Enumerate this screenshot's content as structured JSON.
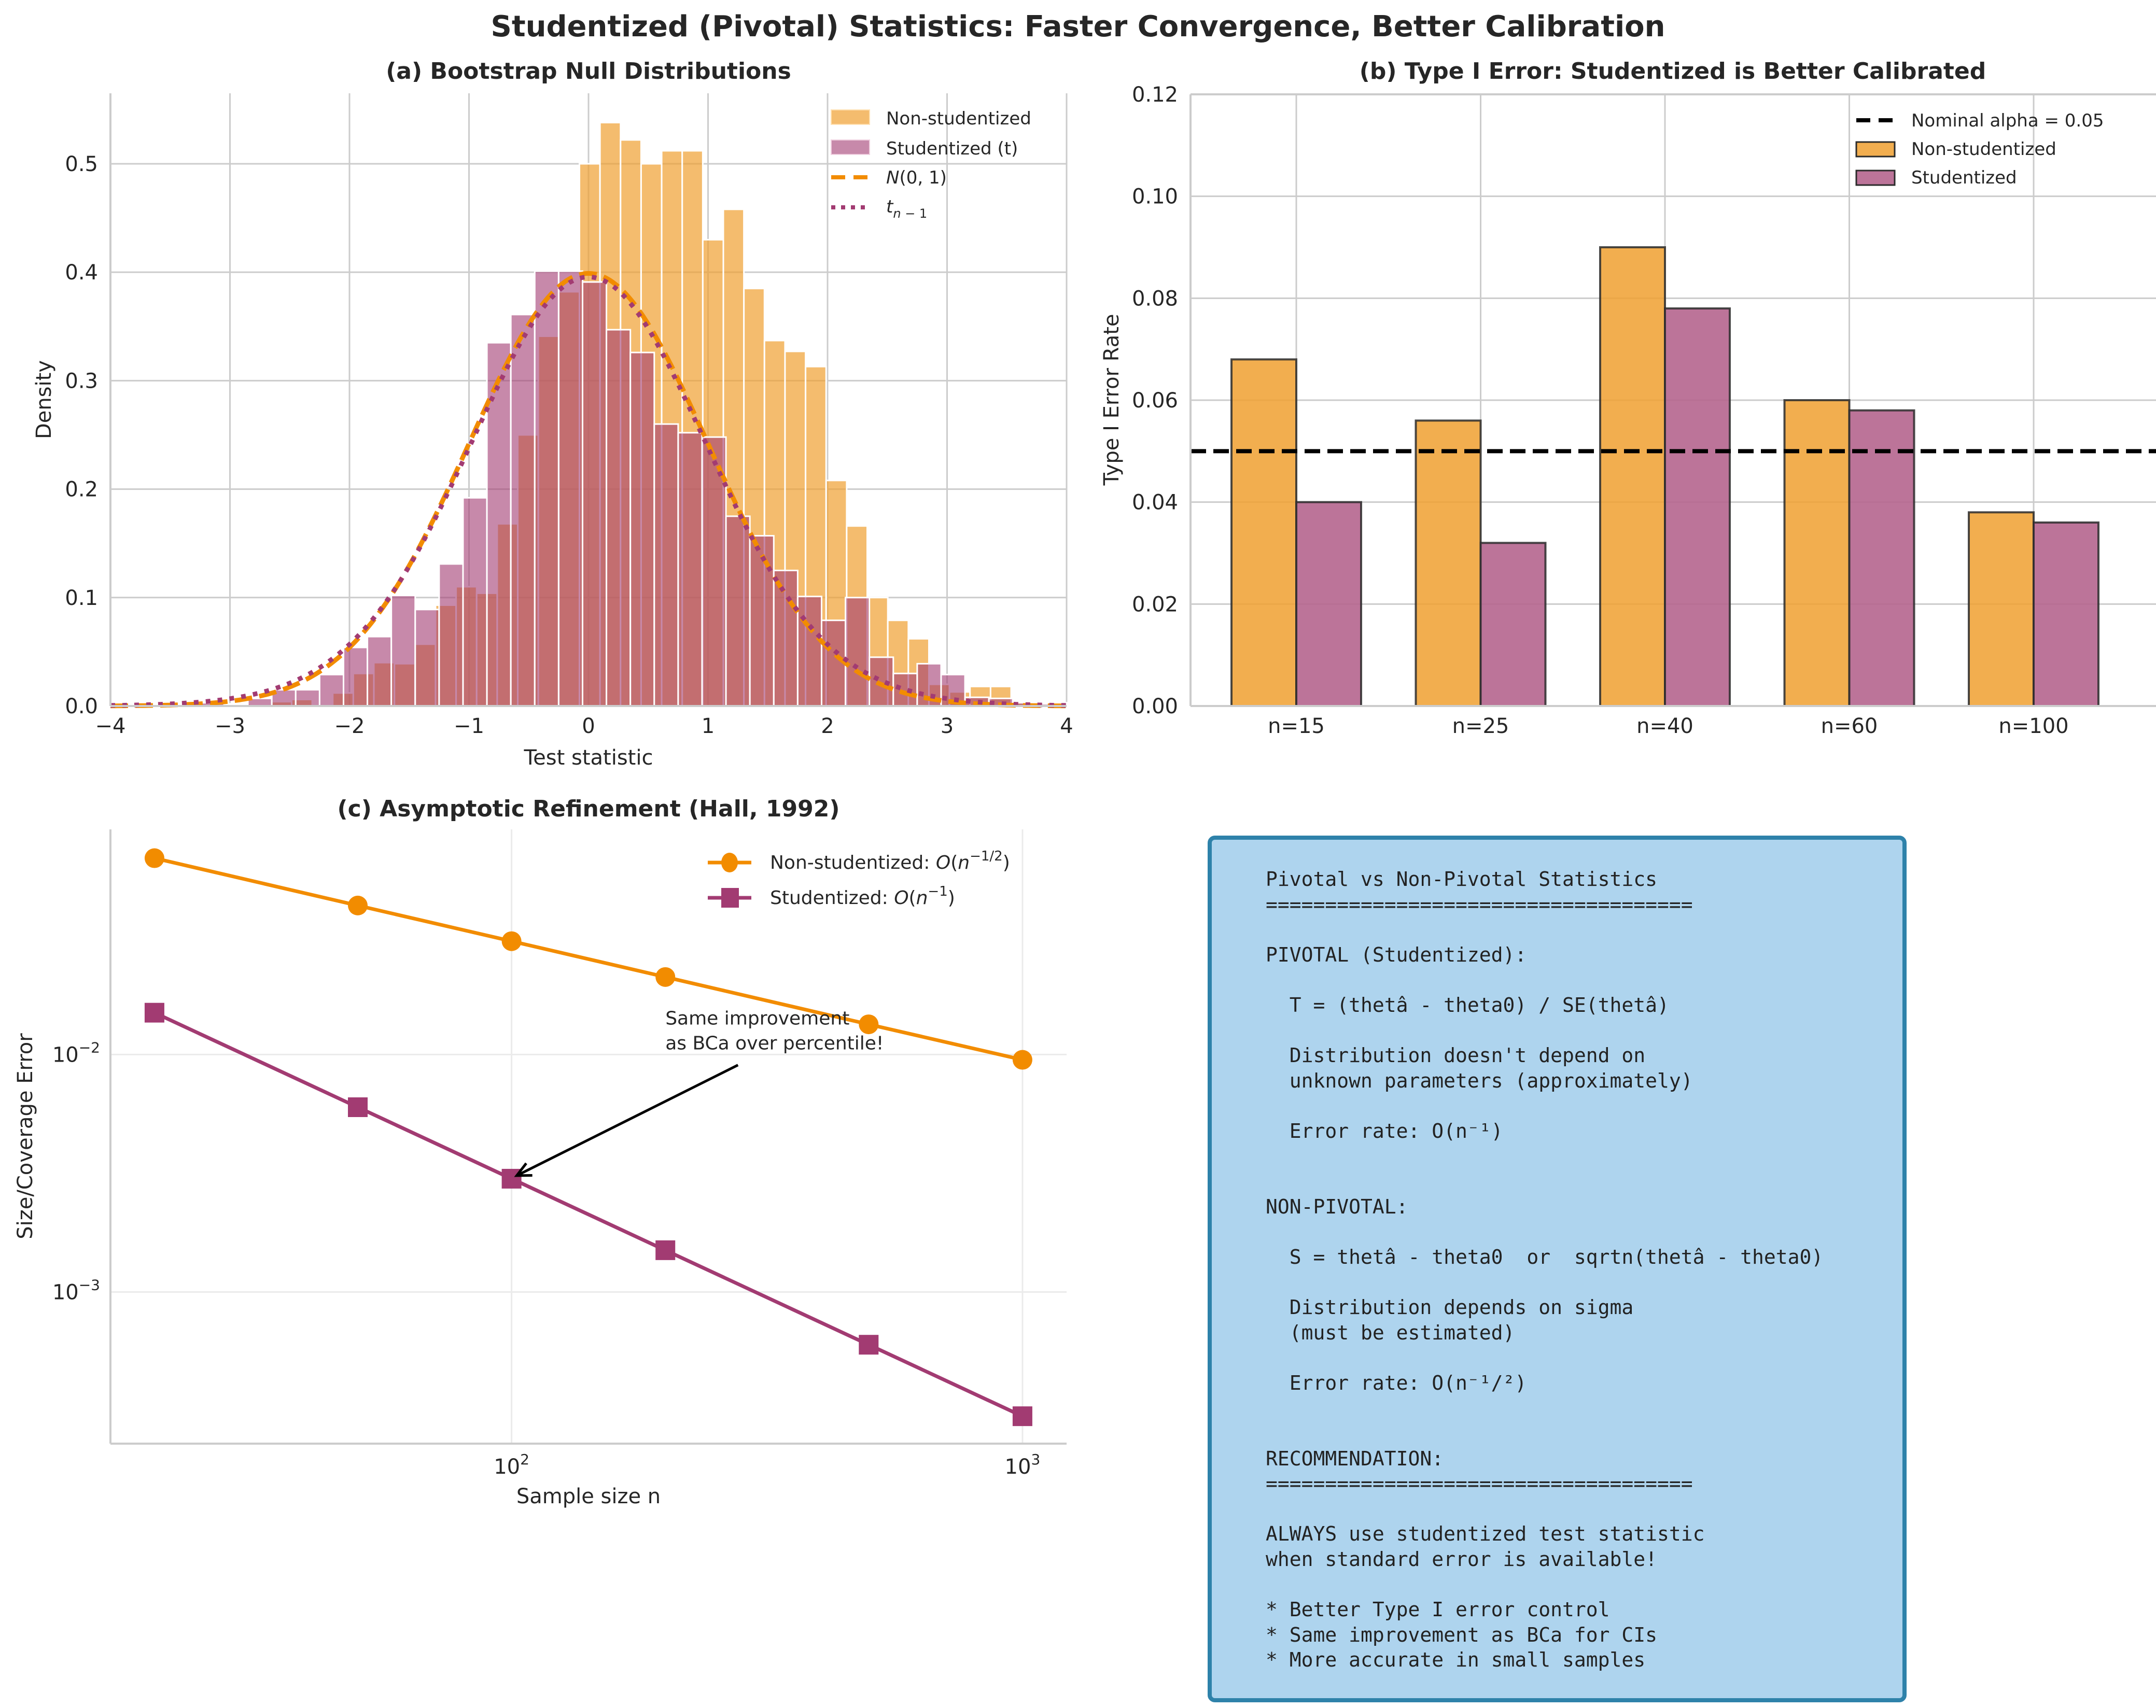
{
  "figure": {
    "suptitle": "Studentized (Pivotal) Statistics: Faster Convergence, Better Calibration"
  },
  "colors": {
    "orange": "#f28c00",
    "orange_fill": "#f0a030",
    "purple": "#a23b72",
    "purple_fill": "#b5658e",
    "grid": "#cccccc",
    "box_fill": "#aed4ee",
    "box_edge": "#2e82aa"
  },
  "chart_data": [
    {
      "id": "a",
      "type": "bar",
      "subtype": "histogram-overlay",
      "title": "(a) Bootstrap Null Distributions",
      "xlabel": "Test statistic",
      "ylabel": "Density",
      "xlim": [
        -4,
        4
      ],
      "ylim": [
        0,
        0.565
      ],
      "xticks": [
        -4,
        -3,
        -2,
        -1,
        0,
        1,
        2,
        3,
        4
      ],
      "xtick_labels": [
        "−4",
        "−3",
        "−2",
        "−1",
        "0",
        "1",
        "2",
        "3",
        "4"
      ],
      "yticks": [
        0.0,
        0.1,
        0.2,
        0.3,
        0.4,
        0.5
      ],
      "ytick_labels": [
        "0.0",
        "0.1",
        "0.2",
        "0.3",
        "0.4",
        "0.5"
      ],
      "grid": true,
      "legend_position": "top-right",
      "legend": [
        {
          "label": "Non-studentized",
          "kind": "patch",
          "color": "#f0a030"
        },
        {
          "label": "Studentized (t)",
          "kind": "patch",
          "color": "#b5658e"
        },
        {
          "label": "N(0, 1)",
          "kind": "dashed-line",
          "color": "#f28c00"
        },
        {
          "label": "t_{n−1}",
          "kind": "dotted-line",
          "color": "#a23b72"
        }
      ],
      "series": [
        {
          "name": "Non-studentized",
          "bin_start": -3.0,
          "bin_width": 0.172,
          "values": [
            0.002,
            0.0,
            0.004,
            0.006,
            0.0,
            0.012,
            0.03,
            0.04,
            0.039,
            0.057,
            0.093,
            0.11,
            0.104,
            0.168,
            0.25,
            0.341,
            0.382,
            0.5,
            0.538,
            0.522,
            0.5,
            0.512,
            0.512,
            0.43,
            0.458,
            0.385,
            0.337,
            0.327,
            0.313,
            0.208,
            0.166,
            0.1,
            0.079,
            0.062,
            0.02,
            0.013,
            0.018,
            0.018,
            0.004,
            0.0,
            0.002,
            0.0,
            0.002
          ]
        },
        {
          "name": "Studentized (t)",
          "bin_start": -3.25,
          "bin_width": 0.2,
          "values": [
            0.003,
            0.001,
            0.007,
            0.015,
            0.015,
            0.029,
            0.054,
            0.064,
            0.102,
            0.089,
            0.131,
            0.192,
            0.335,
            0.361,
            0.401,
            0.401,
            0.391,
            0.347,
            0.326,
            0.26,
            0.252,
            0.248,
            0.175,
            0.157,
            0.125,
            0.101,
            0.079,
            0.1,
            0.045,
            0.03,
            0.039,
            0.029,
            0.008,
            0.007,
            0.003,
            0.002,
            0.003,
            0.001
          ]
        },
        {
          "name": "N(0, 1)",
          "kind": "pdf-normal",
          "mean": 0,
          "sd": 1
        },
        {
          "name": "t_{n−1}",
          "kind": "pdf-t",
          "df": 30
        }
      ]
    },
    {
      "id": "b",
      "type": "bar",
      "title": "(b) Type I Error: Studentized is Better Calibrated",
      "xlabel": "",
      "ylabel": "Type I Error Rate",
      "categories": [
        "n=15",
        "n=25",
        "n=40",
        "n=60",
        "n=100"
      ],
      "ylim": [
        0,
        0.12
      ],
      "yticks": [
        0.0,
        0.02,
        0.04,
        0.06,
        0.08,
        0.1,
        0.12
      ],
      "ytick_labels": [
        "0.00",
        "0.02",
        "0.04",
        "0.06",
        "0.08",
        "0.10",
        "0.12"
      ],
      "grid": true,
      "legend_position": "top-right",
      "reference_line": {
        "label": "Nominal alpha = 0.05",
        "value": 0.05,
        "style": "dashed",
        "color": "#000000"
      },
      "series": [
        {
          "name": "Non-studentized",
          "color": "#f0a030",
          "values": [
            0.068,
            0.056,
            0.09,
            0.06,
            0.038
          ]
        },
        {
          "name": "Studentized",
          "color": "#b5658e",
          "values": [
            0.04,
            0.032,
            0.078,
            0.058,
            0.036
          ]
        }
      ]
    },
    {
      "id": "c",
      "type": "line",
      "scale": "log-log",
      "title": "(c) Asymptotic Refinement (Hall, 1992)",
      "xlabel": "Sample size n",
      "ylabel": "Size/Coverage Error",
      "xlim": [
        16.4,
        1220
      ],
      "ylim": [
        0.00023,
        0.0887
      ],
      "xticks": [
        100,
        1000
      ],
      "xtick_labels": [
        "10",
        "10"
      ],
      "xtick_exponents": [
        "2",
        "3"
      ],
      "yticks": [
        0.001,
        0.01
      ],
      "ytick_labels": [
        "10",
        "10"
      ],
      "ytick_exponents": [
        "−3",
        "−2"
      ],
      "grid": true,
      "legend_position": "top-right",
      "x": [
        20,
        50,
        100,
        200,
        500,
        1000
      ],
      "series": [
        {
          "name": "Non-studentized: O(n^{−1/2})",
          "label_text": "Non-studentized: ",
          "label_math": "O(n",
          "label_sup": "−1/2",
          "marker": "circle",
          "color": "#f28c00",
          "values": [
            0.0671,
            0.0424,
            0.03,
            0.0212,
            0.0134,
            0.0095
          ]
        },
        {
          "name": "Studentized: O(n^{−1})",
          "label_text": "Studentized: ",
          "label_math": "O(n",
          "label_sup": "−1",
          "marker": "square",
          "color": "#a23b72",
          "values": [
            0.015,
            0.006,
            0.003,
            0.0015,
            0.0006,
            0.0003
          ]
        }
      ],
      "annotation": {
        "lines": [
          "Same improvement",
          "as BCa over percentile!"
        ],
        "points_to": {
          "x": 100,
          "y": 0.003
        },
        "text_at": {
          "x": 200,
          "y": 0.0105
        }
      }
    }
  ],
  "infobox": {
    "text": "Pivotal vs Non-Pivotal Statistics\n====================================\n\nPIVOTAL (Studentized):\n\n  T = (thetâ - theta0) / SE(thetâ)\n\n  Distribution doesn't depend on\n  unknown parameters (approximately)\n\n  Error rate: O(n⁻¹)\n\n\nNON-PIVOTAL:\n\n  S = thetâ - theta0  or  sqrtn(thetâ - theta0)\n\n  Distribution depends on sigma\n  (must be estimated)\n\n  Error rate: O(n⁻¹/²)\n\n\nRECOMMENDATION:\n====================================\n\nALWAYS use studentized test statistic\nwhen standard error is available!\n\n* Better Type I error control\n* Same improvement as BCa for CIs\n* More accurate in small samples"
  }
}
